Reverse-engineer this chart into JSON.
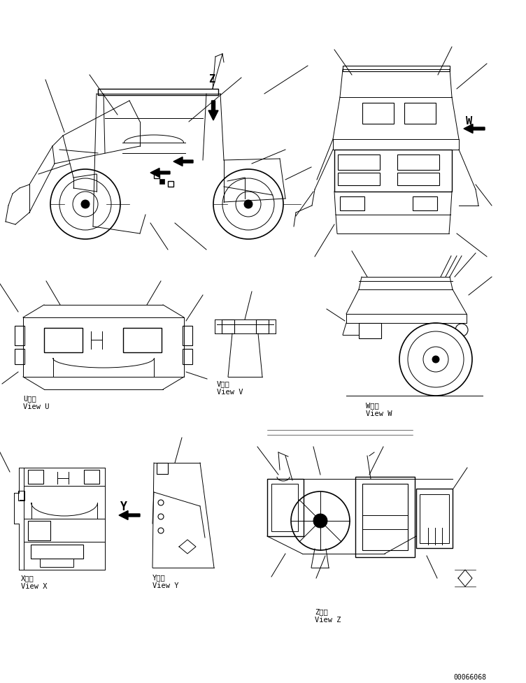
{
  "bg_color": "#ffffff",
  "line_color": "#000000",
  "fig_width": 7.52,
  "fig_height": 9.78,
  "dpi": 100,
  "labels": {
    "view_u_kanji": "U　視",
    "view_u": "View U",
    "view_v_kanji": "V　視",
    "view_v": "View V",
    "view_w_kanji": "W　視",
    "view_w": "View W",
    "view_x_kanji": "X　視",
    "view_x": "View X",
    "view_y_kanji": "Y　視",
    "view_y": "View Y",
    "view_z_kanji": "Z　視",
    "view_z": "View Z",
    "part_number": "00066068"
  },
  "font_size_label": 7.5,
  "arrow_color": "#000000"
}
